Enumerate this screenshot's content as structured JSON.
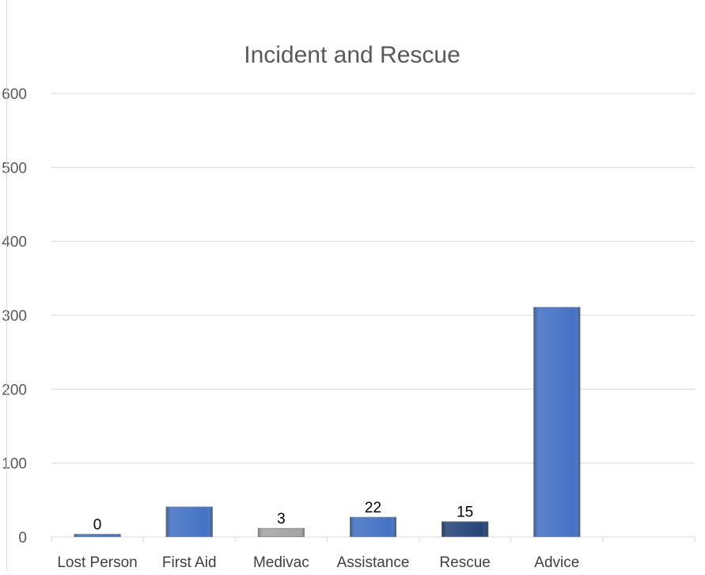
{
  "chart_data": {
    "type": "bar",
    "title": "Incident and Rescue",
    "xlabel": "",
    "ylabel": "",
    "categories": [
      "Lost Person",
      "First Aid",
      "Medivac",
      "Assistance",
      "Rescue",
      "Advice"
    ],
    "series": [
      {
        "values": [
          4,
          41,
          12,
          27,
          21,
          311
        ],
        "data_labels": [
          "0",
          "",
          "3",
          "22",
          "15",
          ""
        ]
      }
    ],
    "bar_colors": [
      "#4472C4",
      "#4472C4",
      "#A5A5A5",
      "#4472C4",
      "#264478",
      "#4472C4"
    ],
    "ylim": [
      0,
      600
    ],
    "yticks": [
      0,
      100,
      200,
      300,
      400,
      500,
      600
    ],
    "grid": true
  }
}
